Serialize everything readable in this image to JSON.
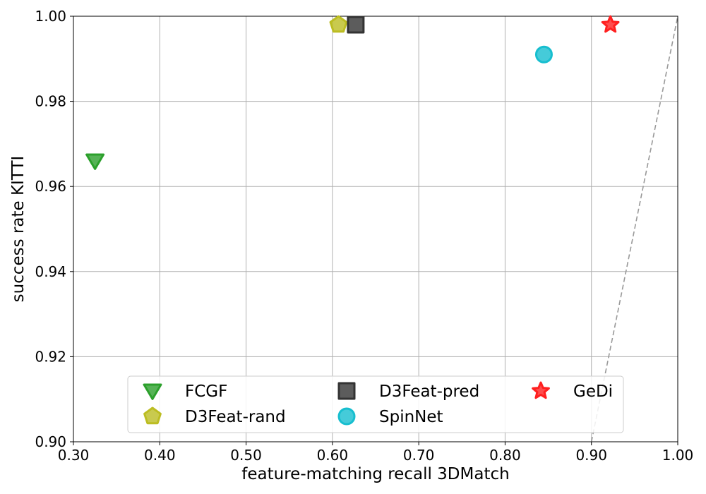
{
  "chart_data": {
    "type": "scatter",
    "title": "",
    "xlabel": "feature-matching recall 3DMatch",
    "ylabel": "success rate KITTI",
    "xlim": [
      0.3,
      1.0
    ],
    "ylim": [
      0.9,
      1.0
    ],
    "grid": true,
    "x_ticks": [
      {
        "value": 0.3,
        "label": "0.30"
      },
      {
        "value": 0.4,
        "label": "0.40"
      },
      {
        "value": 0.5,
        "label": "0.50"
      },
      {
        "value": 0.6,
        "label": "0.60"
      },
      {
        "value": 0.7,
        "label": "0.70"
      },
      {
        "value": 0.8,
        "label": "0.80"
      },
      {
        "value": 0.9,
        "label": "0.90"
      },
      {
        "value": 1.0,
        "label": "1.00"
      }
    ],
    "y_ticks": [
      {
        "value": 0.9,
        "label": "0.90"
      },
      {
        "value": 0.92,
        "label": "0.92"
      },
      {
        "value": 0.94,
        "label": "0.94"
      },
      {
        "value": 0.96,
        "label": "0.96"
      },
      {
        "value": 0.98,
        "label": "0.98"
      },
      {
        "value": 1.0,
        "label": "1.00"
      }
    ],
    "series": [
      {
        "name": "FCGF",
        "marker": "triangle-down",
        "color": "#2ca02c",
        "x": 0.325,
        "y": 0.966
      },
      {
        "name": "D3Feat-rand",
        "marker": "pentagon",
        "color": "#bcbd22",
        "x": 0.607,
        "y": 0.998
      },
      {
        "name": "D3Feat-pred",
        "marker": "square",
        "color": "#333333",
        "x": 0.627,
        "y": 0.998
      },
      {
        "name": "SpinNet",
        "marker": "circle",
        "color": "#17becf",
        "x": 0.845,
        "y": 0.991
      },
      {
        "name": "GeDi",
        "marker": "star",
        "color": "#ff2020",
        "x": 0.922,
        "y": 0.998
      }
    ],
    "reference_line": {
      "style": "dashed",
      "color": "#999999",
      "from": [
        0.9,
        0.9
      ],
      "to": [
        1.0,
        1.0
      ]
    },
    "legend": {
      "position": "bottom-center",
      "columns": 3,
      "order": [
        "FCGF",
        "D3Feat-rand",
        "D3Feat-pred",
        "SpinNet",
        "GeDi"
      ]
    }
  }
}
